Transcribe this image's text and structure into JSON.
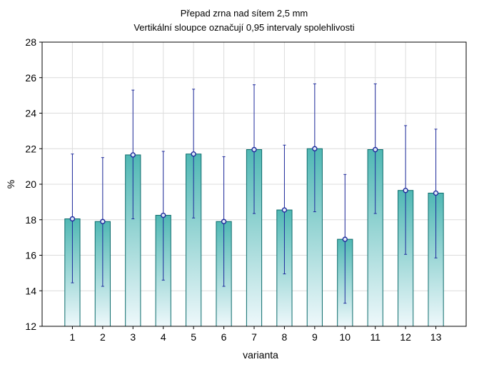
{
  "chart_data": {
    "type": "bar",
    "title": "Přepad zrna nad sítem 2,5 mm",
    "subtitle": "Vertikální sloupce označují 0,95 intervaly spolehlivosti",
    "xlabel": "varianta",
    "ylabel": "%",
    "categories": [
      "1",
      "2",
      "3",
      "4",
      "5",
      "6",
      "7",
      "8",
      "9",
      "10",
      "11",
      "12",
      "13"
    ],
    "values": [
      18.05,
      17.9,
      21.65,
      18.25,
      21.7,
      17.9,
      21.95,
      18.55,
      22.0,
      16.9,
      21.95,
      19.65,
      19.5
    ],
    "ci_lower": [
      14.45,
      14.25,
      18.05,
      14.6,
      18.1,
      14.25,
      18.35,
      14.95,
      18.45,
      13.3,
      18.35,
      16.05,
      15.85
    ],
    "ci_upper": [
      21.7,
      21.5,
      25.3,
      21.85,
      25.35,
      21.55,
      25.6,
      22.2,
      25.65,
      20.55,
      25.65,
      23.3,
      23.1
    ],
    "ylim": [
      12,
      28
    ],
    "yticks": [
      "12",
      "14",
      "16",
      "18",
      "20",
      "22",
      "24",
      "26",
      "28"
    ],
    "x_domain": [
      0,
      14
    ],
    "grid": true,
    "colors": {
      "bar_top": "#50b8b4",
      "bar_bottom": "#eef8fb",
      "bar_stroke": "#0b6b6b",
      "error_bar": "#1e2a9c",
      "point_fill": "#dce9f8",
      "grid": "#dcdcdc",
      "axis": "#000000"
    }
  }
}
